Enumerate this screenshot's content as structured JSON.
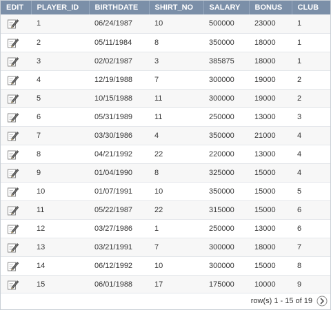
{
  "table": {
    "columns": [
      "EDIT",
      "PLAYER_ID",
      "BIRTHDATE",
      "SHIRT_NO",
      "SALARY",
      "BONUS",
      "CLUB"
    ],
    "rows": [
      {
        "player_id": "1",
        "birthdate": "06/24/1987",
        "shirt_no": "10",
        "salary": "500000",
        "bonus": "23000",
        "club": "1"
      },
      {
        "player_id": "2",
        "birthdate": "05/11/1984",
        "shirt_no": "8",
        "salary": "350000",
        "bonus": "18000",
        "club": "1"
      },
      {
        "player_id": "3",
        "birthdate": "02/02/1987",
        "shirt_no": "3",
        "salary": "385875",
        "bonus": "18000",
        "club": "1"
      },
      {
        "player_id": "4",
        "birthdate": "12/19/1988",
        "shirt_no": "7",
        "salary": "300000",
        "bonus": "19000",
        "club": "2"
      },
      {
        "player_id": "5",
        "birthdate": "10/15/1988",
        "shirt_no": "11",
        "salary": "300000",
        "bonus": "19000",
        "club": "2"
      },
      {
        "player_id": "6",
        "birthdate": "05/31/1989",
        "shirt_no": "11",
        "salary": "250000",
        "bonus": "13000",
        "club": "3"
      },
      {
        "player_id": "7",
        "birthdate": "03/30/1986",
        "shirt_no": "4",
        "salary": "350000",
        "bonus": "21000",
        "club": "4"
      },
      {
        "player_id": "8",
        "birthdate": "04/21/1992",
        "shirt_no": "22",
        "salary": "220000",
        "bonus": "13000",
        "club": "4"
      },
      {
        "player_id": "9",
        "birthdate": "01/04/1990",
        "shirt_no": "8",
        "salary": "325000",
        "bonus": "15000",
        "club": "4"
      },
      {
        "player_id": "10",
        "birthdate": "01/07/1991",
        "shirt_no": "10",
        "salary": "350000",
        "bonus": "15000",
        "club": "5"
      },
      {
        "player_id": "11",
        "birthdate": "05/22/1987",
        "shirt_no": "22",
        "salary": "315000",
        "bonus": "15000",
        "club": "6"
      },
      {
        "player_id": "12",
        "birthdate": "03/27/1986",
        "shirt_no": "1",
        "salary": "250000",
        "bonus": "13000",
        "club": "6"
      },
      {
        "player_id": "13",
        "birthdate": "03/21/1991",
        "shirt_no": "7",
        "salary": "300000",
        "bonus": "18000",
        "club": "7"
      },
      {
        "player_id": "14",
        "birthdate": "06/12/1992",
        "shirt_no": "10",
        "salary": "300000",
        "bonus": "15000",
        "club": "8"
      },
      {
        "player_id": "15",
        "birthdate": "06/01/1988",
        "shirt_no": "17",
        "salary": "175000",
        "bonus": "10000",
        "club": "9"
      }
    ],
    "edit_icon": "pencil-edit-icon"
  },
  "pagination": {
    "label": "row(s) 1 - 15 of 19",
    "next_icon": "chevron-right-icon"
  },
  "colors": {
    "header_bg": "#7b8fa8",
    "header_text": "#ffffff",
    "row_alt_bg": "#f7f7f7"
  }
}
